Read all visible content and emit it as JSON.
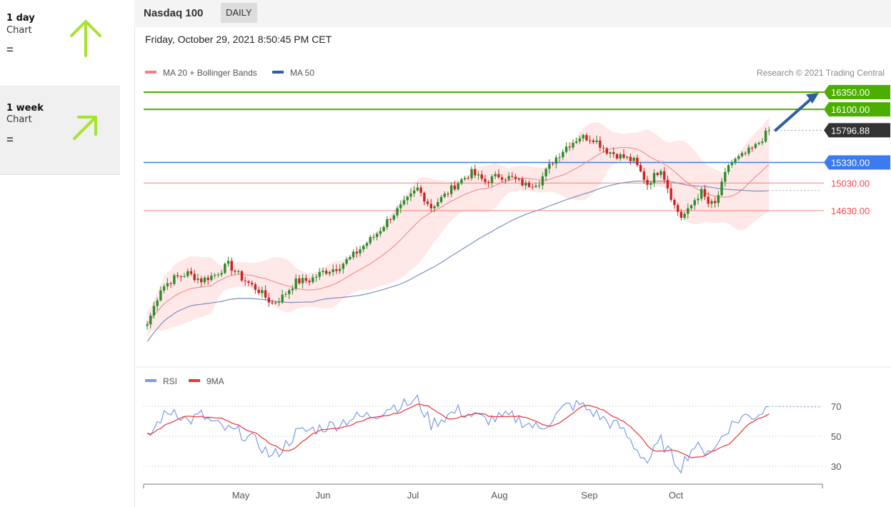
{
  "sidebar": {
    "cards": [
      {
        "title": "1 day",
        "subtitle": "Chart",
        "status": "=",
        "direction": "up",
        "color": "#a6e22e"
      },
      {
        "title": "1 week",
        "subtitle": "Chart",
        "status": "=",
        "direction": "up-right",
        "color": "#a6e22e"
      }
    ]
  },
  "header": {
    "title": "Nasdaq 100",
    "period": "DAILY"
  },
  "date_label": "Friday, October 29, 2021 8:50:45 PM CET",
  "legend": {
    "ma20": "MA 20 + Bollinger Bands",
    "ma50": "MA 50",
    "copyright": "Research © 2021 Trading Central"
  },
  "rsi_legend": {
    "rsi": "RSI",
    "ma9": "9MA"
  },
  "colors": {
    "resistance": "#4caf00",
    "current": "#333333",
    "pivot": "#3a7bf0",
    "support": "#ff4444",
    "bollinger_fill": "#ffe0e0",
    "ma20": "#f08080",
    "ma50": "#7a8fbf",
    "bull_candle": "#2e8b2e",
    "bear_candle": "#cc2222",
    "forecast_arrow": "#2e5e9e",
    "rsi_line": "#7b9ae8",
    "rsi_ma": "#ee3333"
  },
  "chart_data": {
    "type": "candlestick",
    "title": "Nasdaq 100",
    "period": "DAILY",
    "x_labels": [
      "May",
      "Jun",
      "Jul",
      "Aug",
      "Sep",
      "Oct"
    ],
    "ylim": [
      12500,
      16500
    ],
    "start_close": 12980,
    "last_close": 15796.88,
    "levels": [
      {
        "value": 16350.0,
        "label": "16350.00",
        "type": "resistance"
      },
      {
        "value": 16100.0,
        "label": "16100.00",
        "type": "resistance"
      },
      {
        "value": 15796.88,
        "label": "15796.88",
        "type": "current"
      },
      {
        "value": 15330.0,
        "label": "15330.00",
        "type": "pivot"
      },
      {
        "value": 15030.0,
        "label": "15030.00",
        "type": "support"
      },
      {
        "value": 14630.0,
        "label": "14630.00",
        "type": "support"
      }
    ],
    "close_waypoints": [
      [
        0,
        12980
      ],
      [
        4,
        13500
      ],
      [
        8,
        13650
      ],
      [
        12,
        13720
      ],
      [
        16,
        13620
      ],
      [
        20,
        13700
      ],
      [
        24,
        13850
      ],
      [
        28,
        13650
      ],
      [
        33,
        13470
      ],
      [
        37,
        13280
      ],
      [
        40,
        13380
      ],
      [
        44,
        13600
      ],
      [
        48,
        13620
      ],
      [
        52,
        13740
      ],
      [
        56,
        13800
      ],
      [
        60,
        13940
      ],
      [
        64,
        14120
      ],
      [
        68,
        14300
      ],
      [
        72,
        14540
      ],
      [
        76,
        14730
      ],
      [
        80,
        14950
      ],
      [
        84,
        14680
      ],
      [
        88,
        14850
      ],
      [
        92,
        15040
      ],
      [
        96,
        15180
      ],
      [
        100,
        15050
      ],
      [
        104,
        15140
      ],
      [
        108,
        15100
      ],
      [
        112,
        15000
      ],
      [
        116,
        15050
      ],
      [
        120,
        15350
      ],
      [
        124,
        15560
      ],
      [
        128,
        15700
      ],
      [
        132,
        15680
      ],
      [
        136,
        15500
      ],
      [
        140,
        15420
      ],
      [
        144,
        15350
      ],
      [
        148,
        15020
      ],
      [
        152,
        15250
      ],
      [
        156,
        14700
      ],
      [
        158,
        14540
      ],
      [
        160,
        14620
      ],
      [
        162,
        14790
      ],
      [
        164,
        14900
      ],
      [
        166,
        14730
      ],
      [
        168,
        14720
      ],
      [
        170,
        15000
      ],
      [
        172,
        15300
      ],
      [
        176,
        15420
      ],
      [
        180,
        15560
      ],
      [
        184,
        15796.88
      ]
    ],
    "rsi": {
      "levels": [
        70,
        50,
        30
      ],
      "ylim": [
        20,
        80
      ],
      "waypoints": [
        [
          0,
          48
        ],
        [
          4,
          62
        ],
        [
          8,
          68
        ],
        [
          12,
          60
        ],
        [
          16,
          64
        ],
        [
          20,
          58
        ],
        [
          24,
          54
        ],
        [
          28,
          52
        ],
        [
          33,
          45
        ],
        [
          37,
          36
        ],
        [
          40,
          42
        ],
        [
          44,
          52
        ],
        [
          48,
          54
        ],
        [
          52,
          56
        ],
        [
          56,
          58
        ],
        [
          60,
          62
        ],
        [
          64,
          63
        ],
        [
          68,
          65
        ],
        [
          72,
          70
        ],
        [
          76,
          71
        ],
        [
          80,
          74
        ],
        [
          84,
          58
        ],
        [
          88,
          63
        ],
        [
          92,
          67
        ],
        [
          96,
          64
        ],
        [
          100,
          61
        ],
        [
          104,
          62
        ],
        [
          108,
          63
        ],
        [
          112,
          59
        ],
        [
          116,
          55
        ],
        [
          120,
          62
        ],
        [
          124,
          70
        ],
        [
          128,
          71
        ],
        [
          132,
          66
        ],
        [
          136,
          60
        ],
        [
          140,
          56
        ],
        [
          144,
          44
        ],
        [
          148,
          33
        ],
        [
          152,
          47
        ],
        [
          156,
          34
        ],
        [
          158,
          30
        ],
        [
          160,
          38
        ],
        [
          162,
          44
        ],
        [
          164,
          40
        ],
        [
          166,
          42
        ],
        [
          168,
          41
        ],
        [
          170,
          50
        ],
        [
          172,
          56
        ],
        [
          176,
          63
        ],
        [
          180,
          64
        ],
        [
          184,
          70
        ]
      ]
    }
  }
}
